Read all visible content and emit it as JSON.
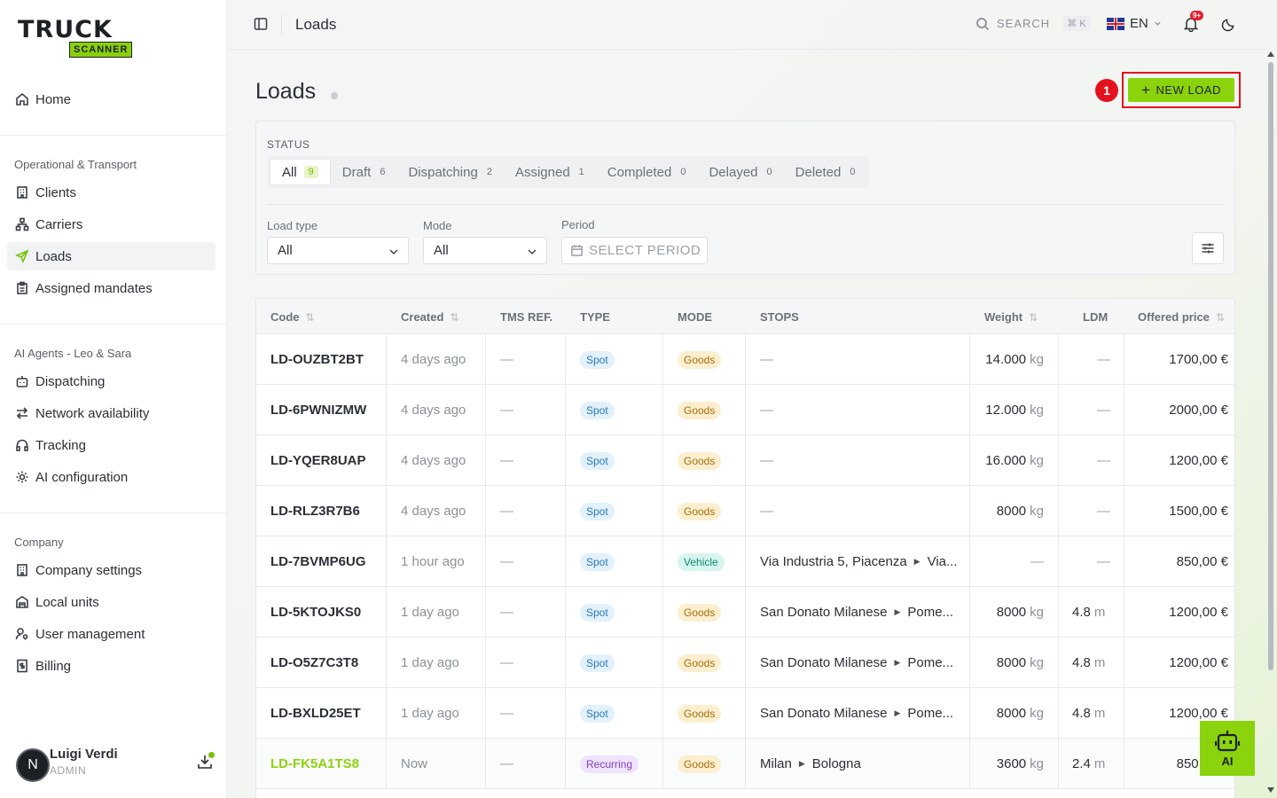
{
  "brand": {
    "top": "TRUCK",
    "bottom": "SCANNER"
  },
  "sidebar": {
    "home": "Home",
    "sections": [
      {
        "title": "Operational & Transport",
        "items": [
          "Clients",
          "Carriers",
          "Loads",
          "Assigned mandates"
        ]
      },
      {
        "title": "AI Agents - Leo & Sara",
        "items": [
          "Dispatching",
          "Network availability",
          "Tracking",
          "AI configuration"
        ]
      },
      {
        "title": "Company",
        "items": [
          "Company settings",
          "Local units",
          "User management",
          "Billing"
        ]
      }
    ],
    "active": "Loads"
  },
  "user": {
    "initial": "N",
    "name": "Luigi Verdi",
    "role": "ADMIN"
  },
  "topbar": {
    "title": "Loads",
    "search": "SEARCH",
    "shortcut": "⌘ K",
    "lang": "EN",
    "notif_badge": "9+"
  },
  "page": {
    "title": "Loads",
    "step": "1",
    "new_load": "NEW LOAD"
  },
  "filters": {
    "status_label": "STATUS",
    "tabs": [
      {
        "label": "All",
        "count": "9"
      },
      {
        "label": "Draft",
        "count": "6"
      },
      {
        "label": "Dispatching",
        "count": "2"
      },
      {
        "label": "Assigned",
        "count": "1"
      },
      {
        "label": "Completed",
        "count": "0"
      },
      {
        "label": "Delayed",
        "count": "0"
      },
      {
        "label": "Deleted",
        "count": "0"
      }
    ],
    "load_type_label": "Load type",
    "load_type_value": "All",
    "mode_label": "Mode",
    "mode_value": "All",
    "period_label": "Period",
    "period_placeholder": "SELECT PERIOD"
  },
  "table": {
    "headers": [
      "Code",
      "Created",
      "TMS REF.",
      "TYPE",
      "MODE",
      "STOPS",
      "Weight",
      "LDM",
      "Offered price"
    ],
    "rows": [
      {
        "code": "LD-OUZBT2BT",
        "created": "4 days ago",
        "tms": "—",
        "type": "Spot",
        "mode": "Goods",
        "stops": "—",
        "weight": "14.000",
        "weight_unit": "kg",
        "ldm": "—",
        "ldm_unit": "",
        "price": "1700,00 €"
      },
      {
        "code": "LD-6PWNIZMW",
        "created": "4 days ago",
        "tms": "—",
        "type": "Spot",
        "mode": "Goods",
        "stops": "—",
        "weight": "12.000",
        "weight_unit": "kg",
        "ldm": "—",
        "ldm_unit": "",
        "price": "2000,00 €"
      },
      {
        "code": "LD-YQER8UAP",
        "created": "4 days ago",
        "tms": "—",
        "type": "Spot",
        "mode": "Goods",
        "stops": "—",
        "weight": "16.000",
        "weight_unit": "kg",
        "ldm": "—",
        "ldm_unit": "",
        "price": "1200,00 €"
      },
      {
        "code": "LD-RLZ3R7B6",
        "created": "4 days ago",
        "tms": "—",
        "type": "Spot",
        "mode": "Goods",
        "stops": "—",
        "weight": "8000",
        "weight_unit": "kg",
        "ldm": "—",
        "ldm_unit": "",
        "price": "1500,00 €"
      },
      {
        "code": "LD-7BVMP6UG",
        "created": "1 hour ago",
        "tms": "—",
        "type": "Spot",
        "mode": "Vehicle",
        "stop_from": "Via Industria 5, Piacenza",
        "stop_to": "Via...",
        "weight": "—",
        "weight_unit": "",
        "ldm": "—",
        "ldm_unit": "",
        "price": "850,00 €"
      },
      {
        "code": "LD-5KTOJKS0",
        "created": "1 day ago",
        "tms": "—",
        "type": "Spot",
        "mode": "Goods",
        "stop_from": "San Donato Milanese",
        "stop_to": "Pome...",
        "weight": "8000",
        "weight_unit": "kg",
        "ldm": "4.8",
        "ldm_unit": "m",
        "price": "1200,00 €"
      },
      {
        "code": "LD-O5Z7C3T8",
        "created": "1 day ago",
        "tms": "—",
        "type": "Spot",
        "mode": "Goods",
        "stop_from": "San Donato Milanese",
        "stop_to": "Pome...",
        "weight": "8000",
        "weight_unit": "kg",
        "ldm": "4.8",
        "ldm_unit": "m",
        "price": "1200,00 €"
      },
      {
        "code": "LD-BXLD25ET",
        "created": "1 day ago",
        "tms": "—",
        "type": "Spot",
        "mode": "Goods",
        "stop_from": "San Donato Milanese",
        "stop_to": "Pome...",
        "weight": "8000",
        "weight_unit": "kg",
        "ldm": "4.8",
        "ldm_unit": "m",
        "price": "1200,00 €"
      },
      {
        "code": "LD-FK5A1TS8",
        "created": "Now",
        "tms": "—",
        "type": "Recurring",
        "mode": "Goods",
        "stop_from": "Milan",
        "stop_to": "Bologna",
        "weight": "3600",
        "weight_unit": "kg",
        "ldm": "2.4",
        "ldm_unit": "m",
        "price": "850,00 €"
      }
    ]
  },
  "ai_button": {
    "label": "AI"
  },
  "colors": {
    "accent": "#8bd30c",
    "highlight": "#e5101e"
  }
}
